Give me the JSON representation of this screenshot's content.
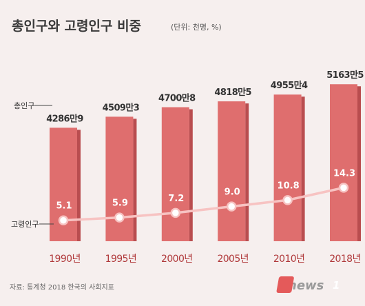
{
  "title": "총인구와 고령인구 비중",
  "unit": "(단위: 천명, %)",
  "colors": {
    "background": "#f6efee",
    "bar": "#df6e6e",
    "bar_shadow": "#b94d4f",
    "line": "#f7c3c2",
    "year_text": "#b0393b"
  },
  "chart_data": {
    "type": "bar",
    "categories": [
      "1990년",
      "1995년",
      "2000년",
      "2005년",
      "2010년",
      "2018년"
    ],
    "series": [
      {
        "name": "총인구",
        "type": "bar",
        "values": [
          42869,
          45093,
          47008,
          48185,
          49554,
          51635
        ],
        "labels": [
          "4286만9",
          "4509만3",
          "4700만8",
          "4818만5",
          "4955만4",
          "5163만5"
        ]
      },
      {
        "name": "고령인구",
        "type": "line",
        "values": [
          5.1,
          5.9,
          7.2,
          9.0,
          10.8,
          14.3
        ],
        "labels": [
          "5.1",
          "5.9",
          "7.2",
          "9.0",
          "10.8",
          "14.3"
        ]
      }
    ],
    "grid": false,
    "legend": "left inline labels"
  },
  "source": "자료: 통계청 2018 한국의 사회지표",
  "logo": {
    "text": "news",
    "mark": "1"
  }
}
